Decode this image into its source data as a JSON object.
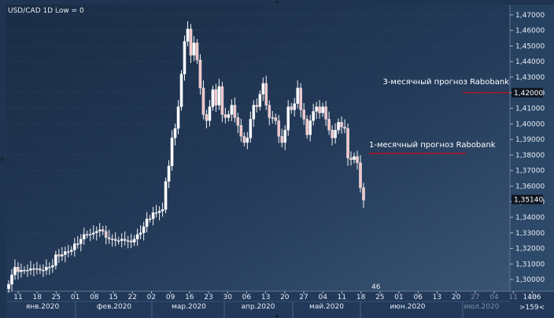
{
  "chart_data": {
    "type": "candlestick",
    "title": "USD/CAD 1D Low = 0",
    "ylim": [
      1.2925,
      1.4765
    ],
    "y_ticks": [
      "1,47000",
      "1,46000",
      "1,45000",
      "1,44000",
      "1,43000",
      "1,42000",
      "1,41000",
      "1,40000",
      "1,39000",
      "1,38000",
      "1,37000",
      "1,36000",
      "1,35000",
      "1,34000",
      "1,33000",
      "1,32000",
      "1,31000",
      "1,30000"
    ],
    "y_tick_values": [
      1.47,
      1.46,
      1.45,
      1.44,
      1.43,
      1.42,
      1.41,
      1.4,
      1.39,
      1.38,
      1.37,
      1.36,
      1.35,
      1.34,
      1.33,
      1.32,
      1.31,
      1.3
    ],
    "current_price_label": "1,35140",
    "current_price": 1.3514,
    "forecast_price_label": "1,42000",
    "forecast_price": 1.42,
    "day_ticks": [
      "11",
      "18",
      "25",
      "01",
      "08",
      "15",
      "22",
      "02",
      "09",
      "16",
      "23",
      "30",
      "06",
      "13",
      "20",
      "27",
      "04",
      "11",
      "18",
      "25",
      "01",
      "06",
      "13",
      "20",
      "27",
      "04",
      "11",
      "18"
    ],
    "month_labels": [
      "янв.2020",
      "фев.2020",
      "мар.2020",
      "апр.2020",
      "май.2020",
      "июн.2020",
      "июл.2020"
    ],
    "right_axis_day_label": "1406",
    "right_axis_month_label": ">159<",
    "bar_count_label": "46",
    "annotations": [
      {
        "text": "3-месячный прогноз Rabobank",
        "level": 1.42
      },
      {
        "text": "1-месячный прогноз Rabobank",
        "level": 1.381
      }
    ],
    "closes": [
      1.297,
      1.303,
      1.308,
      1.305,
      1.306,
      1.306,
      1.306,
      1.307,
      1.307,
      1.307,
      1.306,
      1.306,
      1.308,
      1.308,
      1.309,
      1.316,
      1.315,
      1.316,
      1.318,
      1.318,
      1.319,
      1.323,
      1.323,
      1.326,
      1.329,
      1.329,
      1.329,
      1.33,
      1.331,
      1.332,
      1.331,
      1.327,
      1.326,
      1.326,
      1.325,
      1.325,
      1.326,
      1.325,
      1.325,
      1.324,
      1.326,
      1.329,
      1.33,
      1.334,
      1.339,
      1.339,
      1.343,
      1.343,
      1.344,
      1.345,
      1.363,
      1.373,
      1.391,
      1.397,
      1.411,
      1.432,
      1.453,
      1.461,
      1.444,
      1.452,
      1.441,
      1.423,
      1.406,
      1.402,
      1.411,
      1.422,
      1.412,
      1.424,
      1.406,
      1.404,
      1.406,
      1.412,
      1.404,
      1.399,
      1.392,
      1.388,
      1.391,
      1.403,
      1.412,
      1.411,
      1.419,
      1.426,
      1.412,
      1.404,
      1.404,
      1.402,
      1.392,
      1.388,
      1.396,
      1.411,
      1.409,
      1.413,
      1.423,
      1.409,
      1.403,
      1.393,
      1.402,
      1.408,
      1.411,
      1.407,
      1.411,
      1.403,
      1.396,
      1.391,
      1.396,
      1.401,
      1.398,
      1.397,
      1.378,
      1.377,
      1.379,
      1.375,
      1.359,
      1.351
    ],
    "x_range_days": [
      0,
      145
    ],
    "close_start_day": 0
  }
}
